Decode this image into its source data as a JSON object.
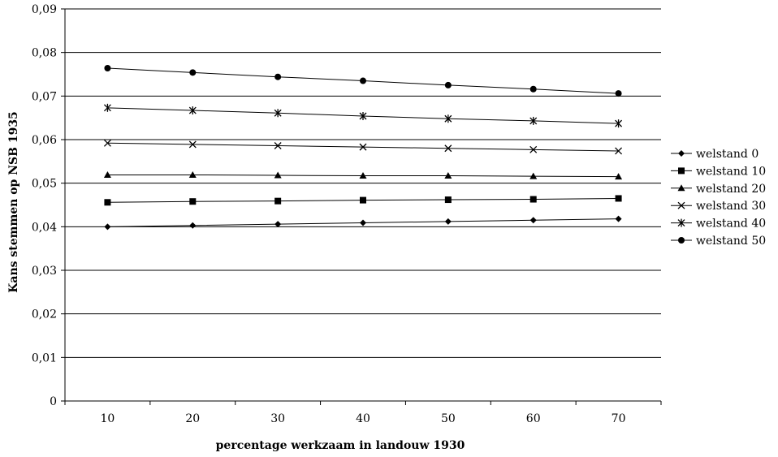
{
  "chart_data": {
    "type": "line",
    "xlabel": "percentage werkzaam in landouw 1930",
    "ylabel": "Kans stemmen op NSB 1935",
    "x": [
      10,
      20,
      30,
      40,
      50,
      60,
      70
    ],
    "x_tick_labels": [
      "10",
      "20",
      "30",
      "40",
      "50",
      "60",
      "70"
    ],
    "ylim": [
      0,
      0.09
    ],
    "y_tick_labels": [
      "0",
      "0,01",
      "0,02",
      "0,03",
      "0,04",
      "0,05",
      "0,06",
      "0,07",
      "0,08",
      "0,09"
    ],
    "grid": "horizontal major gridlines",
    "legend_position": "right",
    "series": [
      {
        "name": "welstand 0",
        "marker": "diamond",
        "values": [
          0.04,
          0.0403,
          0.0406,
          0.0409,
          0.0412,
          0.0415,
          0.0418
        ]
      },
      {
        "name": "welstand 10",
        "marker": "square",
        "values": [
          0.0456,
          0.0458,
          0.0459,
          0.0461,
          0.0462,
          0.0463,
          0.0465
        ]
      },
      {
        "name": "welstand 20",
        "marker": "triangle",
        "values": [
          0.0519,
          0.0519,
          0.0518,
          0.0517,
          0.0517,
          0.0516,
          0.0515
        ]
      },
      {
        "name": "welstand 30",
        "marker": "x",
        "values": [
          0.0592,
          0.0589,
          0.0586,
          0.0583,
          0.058,
          0.0577,
          0.0574
        ]
      },
      {
        "name": "welstand 40",
        "marker": "star",
        "values": [
          0.0673,
          0.0667,
          0.0661,
          0.0654,
          0.0648,
          0.0643,
          0.0637
        ]
      },
      {
        "name": "welstand 50",
        "marker": "circle",
        "values": [
          0.0764,
          0.0754,
          0.0744,
          0.0735,
          0.0725,
          0.0716,
          0.0706
        ]
      }
    ]
  }
}
